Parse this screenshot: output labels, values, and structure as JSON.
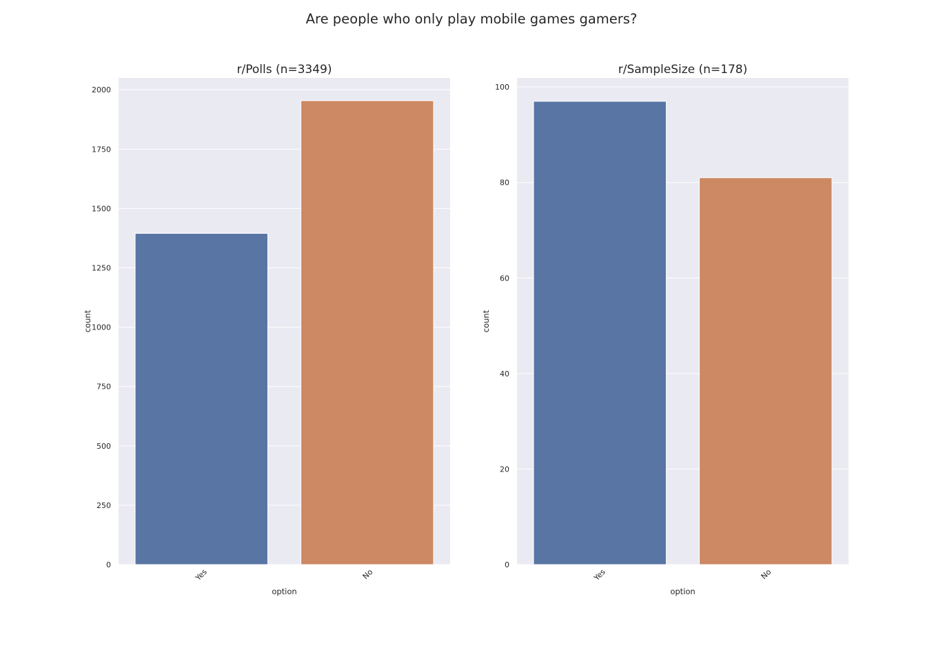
{
  "figure": {
    "suptitle": "Are people who only play mobile games gamers?"
  },
  "colors": {
    "background": "#ffffff",
    "plot_background": "#eaeaf2",
    "grid": "#ffffff",
    "yes_bar": "#5875a4",
    "no_bar": "#cc8963"
  },
  "chart_data": [
    {
      "type": "bar",
      "title": "r/Polls (n=3349)",
      "xlabel": "option",
      "ylabel": "count",
      "categories": [
        "Yes",
        "No"
      ],
      "values": [
        1395,
        1954
      ],
      "ylim": [
        0,
        2050
      ],
      "yticks": [
        0,
        250,
        500,
        750,
        1000,
        1250,
        1500,
        1750,
        2000
      ],
      "grid": true,
      "xtick_rotation": "45deg"
    },
    {
      "type": "bar",
      "title": "r/SampleSize (n=178)",
      "xlabel": "option",
      "ylabel": "count",
      "categories": [
        "Yes",
        "No"
      ],
      "values": [
        97,
        81
      ],
      "ylim": [
        0,
        101.9
      ],
      "yticks": [
        0,
        20,
        40,
        60,
        80,
        100
      ],
      "grid": true,
      "xtick_rotation": "45deg"
    }
  ]
}
